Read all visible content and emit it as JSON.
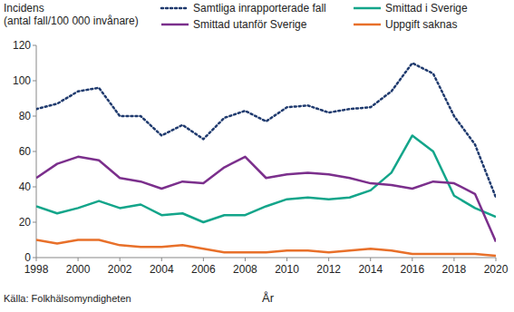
{
  "chart_data": {
    "type": "line",
    "y_label": [
      "Incidens",
      "(antal fall/100 000 invånare)"
    ],
    "x_label": "År",
    "source": "Källa: Folkhälsomyndigheten",
    "x": [
      1998,
      1999,
      2000,
      2001,
      2002,
      2003,
      2004,
      2005,
      2006,
      2007,
      2008,
      2009,
      2010,
      2011,
      2012,
      2013,
      2014,
      2015,
      2016,
      2017,
      2018,
      2019,
      2020
    ],
    "xlim": [
      1998,
      2020
    ],
    "xticks": [
      1998,
      2000,
      2002,
      2004,
      2006,
      2008,
      2010,
      2012,
      2014,
      2016,
      2018,
      2020
    ],
    "ylim": [
      0,
      120
    ],
    "yticks": [
      0,
      20,
      40,
      60,
      80,
      100,
      120
    ],
    "grid": false,
    "legend": "top",
    "series": [
      {
        "name": "Samtliga inrapporterade fall",
        "color": "#1f3a6e",
        "line_style": "dotted",
        "values": [
          84,
          87,
          94,
          96,
          80,
          80,
          69,
          75,
          67,
          79,
          83,
          77,
          85,
          86,
          82,
          84,
          85,
          94,
          110,
          104,
          80,
          64,
          34
        ]
      },
      {
        "name": "Smittad i Sverige",
        "color": "#13a58a",
        "line_style": "solid",
        "values": [
          29,
          25,
          28,
          32,
          28,
          30,
          24,
          25,
          20,
          24,
          24,
          29,
          33,
          34,
          33,
          34,
          38,
          48,
          69,
          60,
          35,
          28,
          23
        ]
      },
      {
        "name": "Smittad utanför Sverige",
        "color": "#7b2f8c",
        "line_style": "solid",
        "values": [
          45,
          53,
          57,
          55,
          45,
          43,
          39,
          43,
          42,
          51,
          57,
          45,
          47,
          48,
          47,
          45,
          42,
          41,
          39,
          43,
          42,
          36,
          9
        ]
      },
      {
        "name": "Uppgift saknas",
        "color": "#e8702a",
        "line_style": "solid",
        "values": [
          10,
          8,
          10,
          10,
          7,
          6,
          6,
          7,
          5,
          3,
          3,
          3,
          4,
          4,
          3,
          4,
          5,
          4,
          2,
          2,
          2,
          2,
          1
        ]
      }
    ]
  }
}
